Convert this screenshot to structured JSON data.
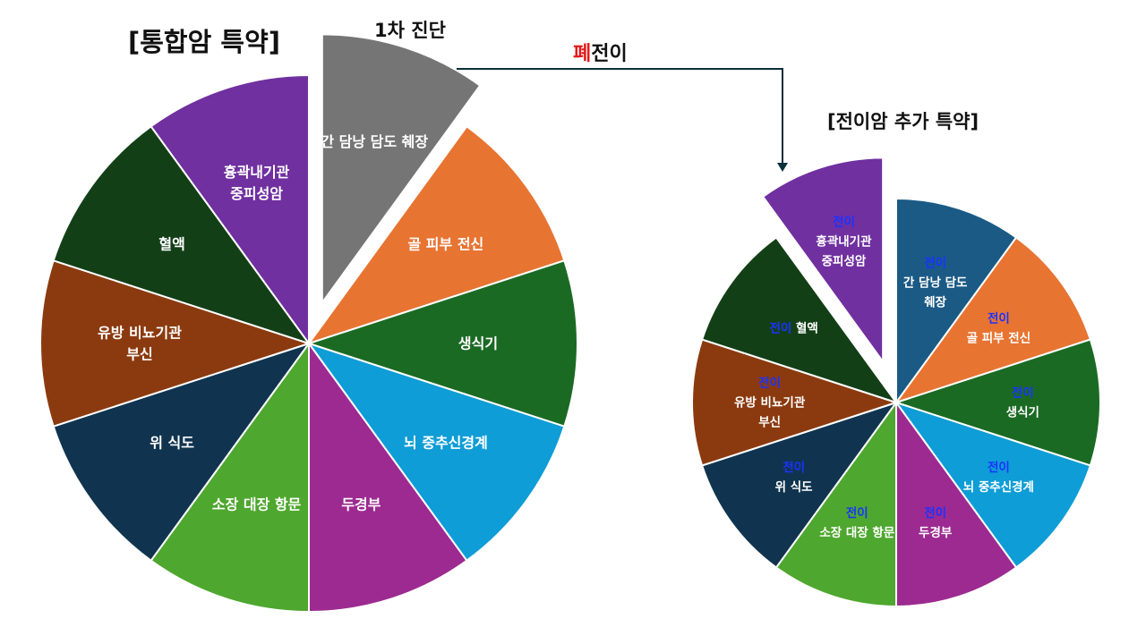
{
  "titles": {
    "integrated": "[통합암 특약]",
    "first_diagnosis": "1차 진단",
    "metastasis_prefix": "폐",
    "metastasis_suffix": "전이",
    "additional": "[전이암 추가 특약]"
  },
  "colors": {
    "gray": "#757575",
    "orange": "#e87432",
    "green": "#1b6a24",
    "cyan": "#0e9dd6",
    "magenta": "#9c2a90",
    "lime": "#4ea72e",
    "navy": "#10344f",
    "brown": "#8b3a0f",
    "darkgreen": "#133f17",
    "purple": "#7030a0",
    "teal": "#1a5a85",
    "arrow": "#0d2e3b",
    "metastasis_red": "#e01c1c",
    "prefix_blue": "#1a33ff"
  },
  "big_pie": {
    "slices": [
      {
        "label": [
          "간 담낭 담도 췌장"
        ],
        "color": "gray",
        "exploded": true
      },
      {
        "label": [
          "골 피부 전신"
        ],
        "color": "orange"
      },
      {
        "label": [
          "생식기"
        ],
        "color": "green"
      },
      {
        "label": [
          "뇌 중추신경계"
        ],
        "color": "cyan"
      },
      {
        "label": [
          "두경부"
        ],
        "color": "magenta"
      },
      {
        "label": [
          "소장 대장 항문"
        ],
        "color": "lime"
      },
      {
        "label": [
          "위 식도"
        ],
        "color": "navy"
      },
      {
        "label": [
          "유방 비뇨기관",
          "부신"
        ],
        "color": "brown"
      },
      {
        "label": [
          "혈액"
        ],
        "color": "darkgreen"
      },
      {
        "label": [
          "흉곽내기관",
          "중피성암"
        ],
        "color": "purple"
      }
    ]
  },
  "small_pie": {
    "prefix": "전이",
    "slices": [
      {
        "label": [
          "간 담낭 담도",
          "췌장"
        ],
        "color": "teal"
      },
      {
        "label": [
          "골 피부 전신"
        ],
        "color": "orange"
      },
      {
        "label": [
          "생식기"
        ],
        "color": "green"
      },
      {
        "label": [
          "뇌 중추신경계"
        ],
        "color": "cyan"
      },
      {
        "label": [
          "두경부"
        ],
        "color": "magenta"
      },
      {
        "label": [
          "소장 대장 항문"
        ],
        "color": "lime"
      },
      {
        "label": [
          "위 식도"
        ],
        "color": "navy"
      },
      {
        "label": [
          "유방 비뇨기관",
          "부신"
        ],
        "color": "brown"
      },
      {
        "label": [
          "혈액"
        ],
        "color": "darkgreen",
        "inline": true
      },
      {
        "label": [
          "흉곽내기관",
          "중피성암"
        ],
        "color": "purple",
        "exploded": true
      }
    ]
  }
}
